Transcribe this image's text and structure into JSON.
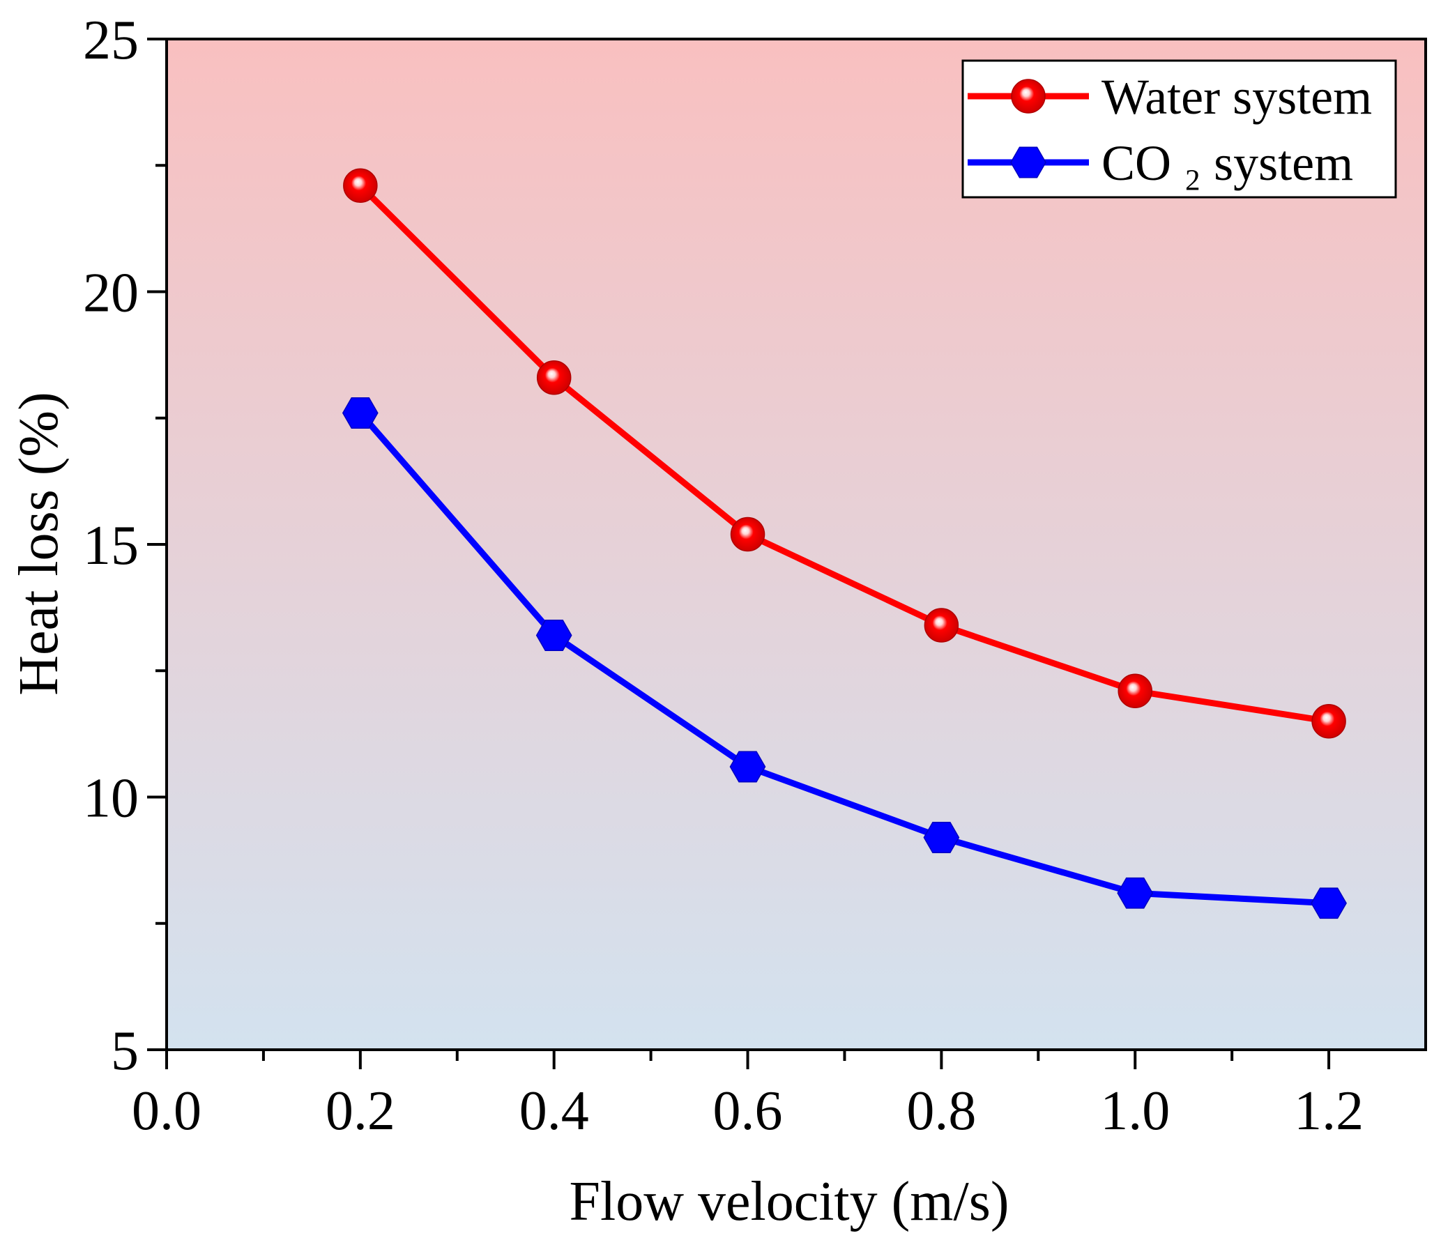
{
  "chart_data": {
    "type": "line",
    "xlabel": "Flow velocity (m/s)",
    "ylabel": "Heat loss (%)",
    "xlim": [
      0,
      1.3
    ],
    "ylim": [
      5,
      25
    ],
    "x_ticks": [
      0,
      0.2,
      0.4,
      0.6,
      0.8,
      1.0,
      1.2
    ],
    "x_tick_labels": [
      "0.0",
      "0.2",
      "0.4",
      "0.6",
      "0.8",
      "1.0",
      "1.2"
    ],
    "x_minor_ticks": [
      0.1,
      0.3,
      0.5,
      0.7,
      0.9,
      1.1
    ],
    "y_ticks": [
      5,
      10,
      15,
      20,
      25
    ],
    "y_tick_labels": [
      "5",
      "10",
      "15",
      "20",
      "25"
    ],
    "y_minor_ticks": [
      7.5,
      12.5,
      17.5,
      22.5
    ],
    "grid": false,
    "x": [
      0.2,
      0.4,
      0.6,
      0.8,
      1.0,
      1.2
    ],
    "series": [
      {
        "name": "Water system",
        "values": [
          22.1,
          18.3,
          15.2,
          13.4,
          12.1,
          11.5
        ],
        "color": "#ff0000",
        "marker": "circle"
      },
      {
        "name": "CO ₂ system",
        "values": [
          17.6,
          13.2,
          10.6,
          9.2,
          8.1,
          7.9
        ],
        "color": "#0000ff",
        "marker": "hexagon"
      }
    ],
    "legend": {
      "position": "top-right"
    },
    "plot_background": {
      "top": "#f9c0c0",
      "bottom": "#d3e2ef"
    }
  }
}
